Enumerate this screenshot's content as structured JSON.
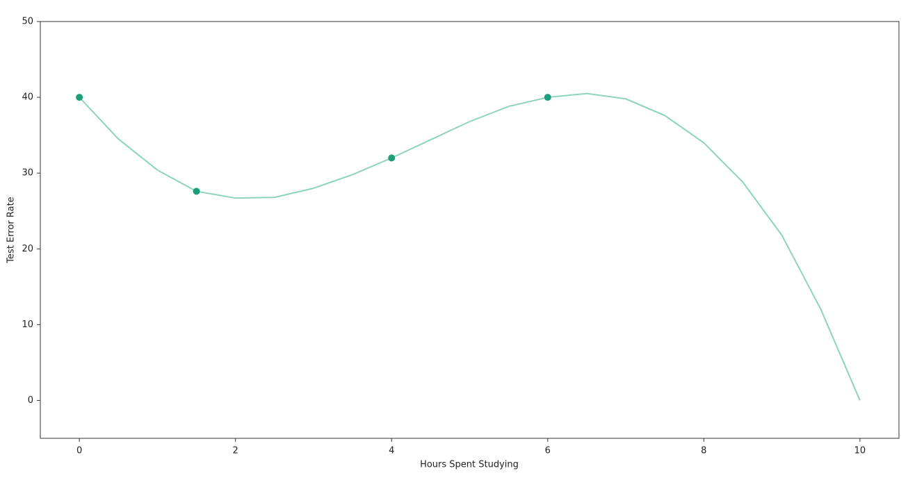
{
  "chart_data": {
    "type": "line",
    "xlabel": "Hours Spent Studying",
    "ylabel": "Test Error Rate",
    "xlim": [
      -0.5,
      10.5
    ],
    "ylim": [
      -5,
      50
    ],
    "xticks": [
      0,
      2,
      4,
      6,
      8,
      10
    ],
    "yticks": [
      0,
      10,
      20,
      30,
      40,
      50
    ],
    "grid": false,
    "series": [
      {
        "color": "#8dd3bd",
        "line": true,
        "marker": false,
        "x": [
          0,
          0.5,
          1,
          1.5,
          2,
          2.5,
          3,
          3.5,
          4,
          4.5,
          5,
          5.5,
          6,
          6.5,
          7,
          7.5,
          8,
          8.5,
          9,
          9.5,
          10
        ],
        "values": [
          40,
          34.5,
          30.4,
          27.6,
          26.7,
          26.8,
          28,
          29.8,
          32,
          34.4,
          36.8,
          38.8,
          40,
          40.5,
          39.8,
          37.6,
          34,
          28.8,
          21.8,
          12,
          0
        ]
      },
      {
        "color": "#1b9e7a",
        "line": false,
        "marker": true,
        "x": [
          0,
          1.5,
          4,
          6
        ],
        "values": [
          40,
          27.6,
          32,
          40
        ]
      }
    ]
  }
}
